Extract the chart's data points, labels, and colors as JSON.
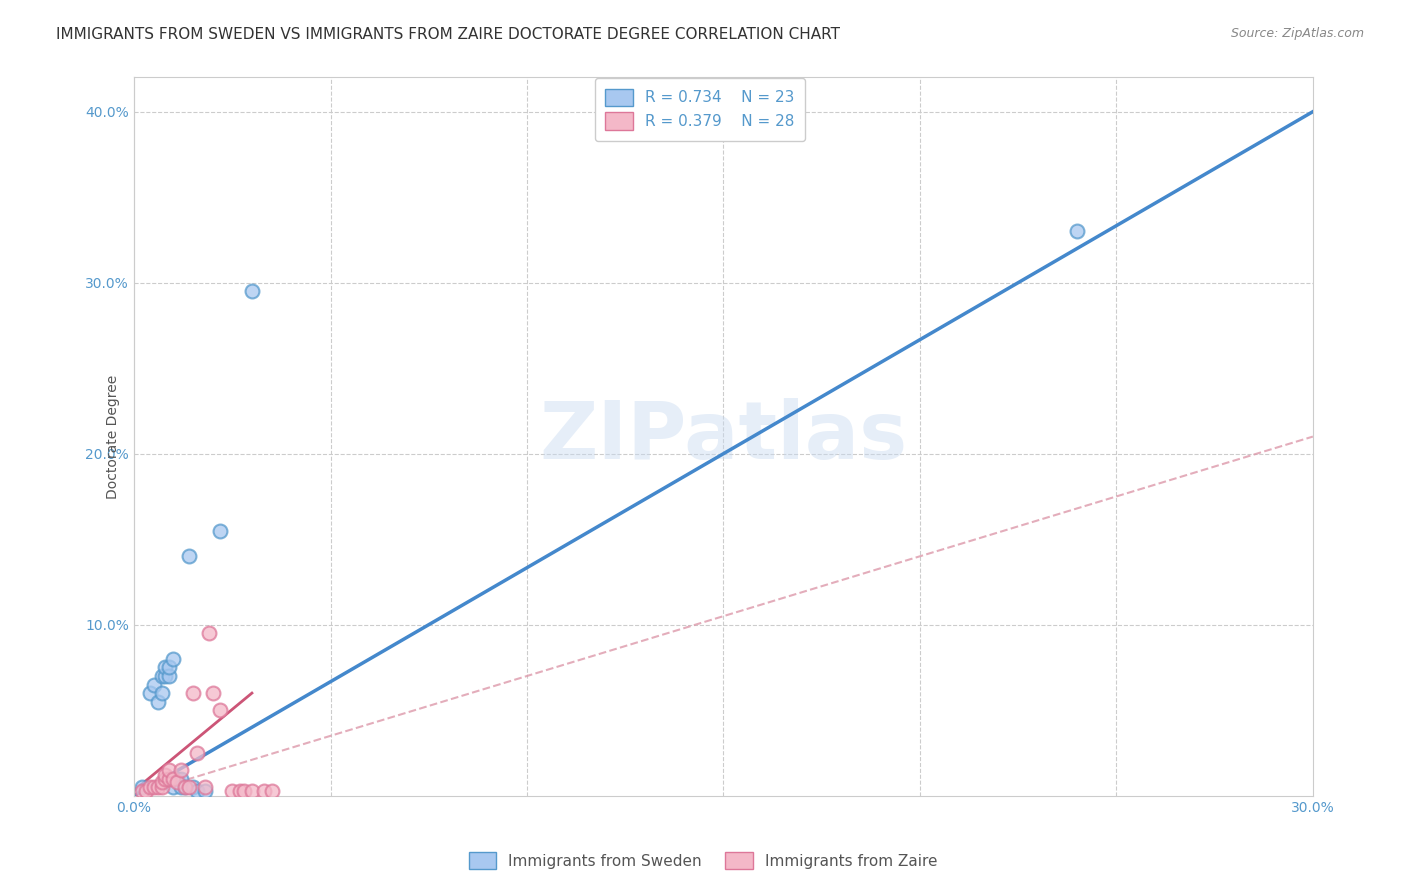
{
  "title": "IMMIGRANTS FROM SWEDEN VS IMMIGRANTS FROM ZAIRE DOCTORATE DEGREE CORRELATION CHART",
  "source": "Source: ZipAtlas.com",
  "ylabel": "Doctorate Degree",
  "xlim": [
    0.0,
    0.3
  ],
  "ylim": [
    0.0,
    0.42
  ],
  "xticks": [
    0.0,
    0.05,
    0.1,
    0.15,
    0.2,
    0.25,
    0.3
  ],
  "yticks": [
    0.0,
    0.1,
    0.2,
    0.3,
    0.4
  ],
  "legend_sweden": "Immigrants from Sweden",
  "legend_zaire": "Immigrants from Zaire",
  "sweden_color": "#a8c8f0",
  "zaire_color": "#f4b8c8",
  "sweden_edge_color": "#5599cc",
  "zaire_edge_color": "#dd7799",
  "sweden_line_color": "#4488cc",
  "zaire_solid_line_color": "#cc5577",
  "zaire_dashed_line_color": "#dd99aa",
  "watermark": "ZIPatlas",
  "sweden_points_x": [
    0.002,
    0.004,
    0.005,
    0.006,
    0.007,
    0.007,
    0.008,
    0.008,
    0.009,
    0.009,
    0.01,
    0.01,
    0.011,
    0.012,
    0.012,
    0.013,
    0.014,
    0.015,
    0.016,
    0.018,
    0.022,
    0.03,
    0.24
  ],
  "sweden_points_y": [
    0.005,
    0.06,
    0.065,
    0.055,
    0.07,
    0.06,
    0.07,
    0.075,
    0.07,
    0.075,
    0.08,
    0.005,
    0.01,
    0.01,
    0.005,
    0.005,
    0.14,
    0.005,
    0.003,
    0.003,
    0.155,
    0.295,
    0.33
  ],
  "zaire_points_x": [
    0.002,
    0.003,
    0.004,
    0.005,
    0.006,
    0.007,
    0.007,
    0.008,
    0.008,
    0.009,
    0.009,
    0.01,
    0.011,
    0.012,
    0.013,
    0.014,
    0.015,
    0.016,
    0.018,
    0.019,
    0.02,
    0.022,
    0.025,
    0.027,
    0.028,
    0.03,
    0.033,
    0.035
  ],
  "zaire_points_y": [
    0.003,
    0.003,
    0.005,
    0.005,
    0.005,
    0.005,
    0.008,
    0.01,
    0.012,
    0.01,
    0.015,
    0.01,
    0.008,
    0.015,
    0.005,
    0.005,
    0.06,
    0.025,
    0.005,
    0.095,
    0.06,
    0.05,
    0.003,
    0.003,
    0.003,
    0.003,
    0.003,
    0.003
  ],
  "sweden_trend_x": [
    0.0,
    0.3
  ],
  "sweden_trend_y": [
    0.0,
    0.4
  ],
  "zaire_solid_trend_x": [
    0.0,
    0.03
  ],
  "zaire_solid_trend_y": [
    0.003,
    0.06
  ],
  "zaire_dashed_trend_x": [
    0.0,
    0.3
  ],
  "zaire_dashed_trend_y": [
    0.0,
    0.21
  ],
  "background_color": "#ffffff",
  "grid_color": "#cccccc",
  "title_fontsize": 11,
  "axis_label_fontsize": 10,
  "tick_fontsize": 10,
  "tick_color": "#5599cc",
  "legend_text_color": "#5599cc",
  "marker_size": 100
}
